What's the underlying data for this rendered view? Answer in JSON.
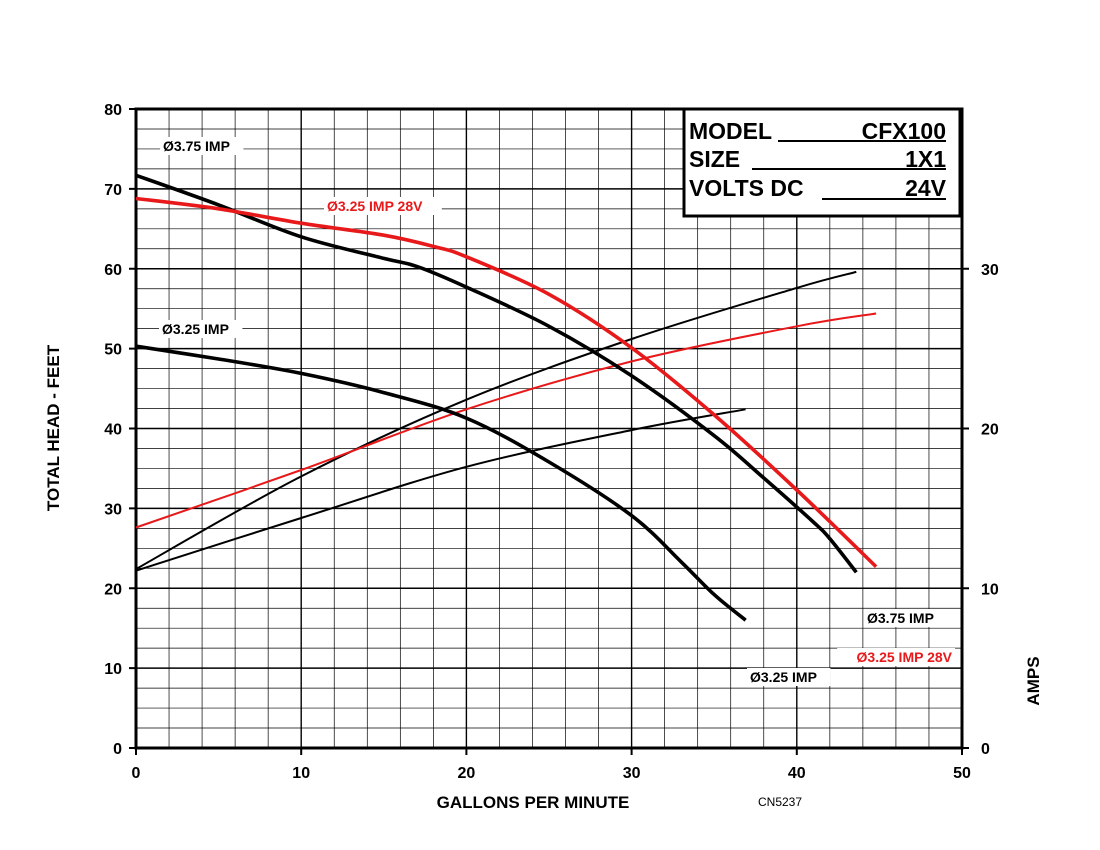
{
  "chart_data": {
    "type": "line",
    "xlabel": "GALLONS PER MINUTE",
    "ylabel": "TOTAL HEAD - FEET",
    "y2label": "AMPS",
    "xlim": [
      0,
      50
    ],
    "ylim": [
      0,
      80
    ],
    "y2lim": [
      0,
      40
    ],
    "x_ticks": [
      "0",
      "10",
      "20",
      "30",
      "40",
      "50"
    ],
    "y_ticks": [
      "0",
      "10",
      "20",
      "30",
      "40",
      "50",
      "60",
      "70",
      "80"
    ],
    "y2_ticks": [
      "0",
      "10",
      "20",
      "30"
    ],
    "grid": true,
    "code": "CN5237",
    "model_box": {
      "model_label": "MODEL",
      "model_value": "CFX100",
      "size_label": "SIZE",
      "size_value": "1X1",
      "volts_label": "VOLTS DC",
      "volts_value": "24V"
    },
    "head_series": [
      {
        "name": "Ø3.75 IMP",
        "color": "#000000",
        "x": [
          0,
          5,
          10,
          15,
          17,
          20,
          25,
          30,
          35,
          38,
          41,
          42,
          43.6
        ],
        "y": [
          71.7,
          68,
          64,
          61.3,
          60.3,
          57.7,
          52.8,
          46.6,
          39.1,
          33.8,
          28.3,
          26.2,
          22
        ]
      },
      {
        "name": "Ø3.25 IMP 28V",
        "color": "#e8191a",
        "x": [
          0,
          5,
          10,
          15,
          18,
          20,
          25,
          30,
          35,
          40,
          44.8
        ],
        "y": [
          68.8,
          67.5,
          65.7,
          64.2,
          62.8,
          61.5,
          56.8,
          50.1,
          41.7,
          32.3,
          22.7
        ]
      },
      {
        "name": "Ø3.25 IMP",
        "color": "#000000",
        "x": [
          0,
          5,
          10,
          15,
          20,
          25,
          30,
          33,
          35,
          36.9
        ],
        "y": [
          50.3,
          48.7,
          46.9,
          44.5,
          41.3,
          35.8,
          29.1,
          23.3,
          19.2,
          16
        ]
      }
    ],
    "amps_series": [
      {
        "name": "Ø3.75 IMP",
        "color": "#000000",
        "x": [
          0,
          10,
          20,
          30,
          40,
          43.6
        ],
        "y": [
          11.2,
          17,
          21.8,
          25.6,
          28.8,
          29.8
        ]
      },
      {
        "name": "Ø3.25 IMP 28V",
        "color": "#e8191a",
        "x": [
          0,
          10,
          20,
          30,
          40,
          44.8
        ],
        "y": [
          13.8,
          17.4,
          21.2,
          24.2,
          26.4,
          27.2
        ]
      },
      {
        "name": "Ø3.25 IMP",
        "color": "#000000",
        "x": [
          0,
          10,
          20,
          30,
          36.9
        ],
        "y": [
          11.1,
          14.4,
          17.6,
          19.9,
          21.2
        ]
      }
    ]
  }
}
